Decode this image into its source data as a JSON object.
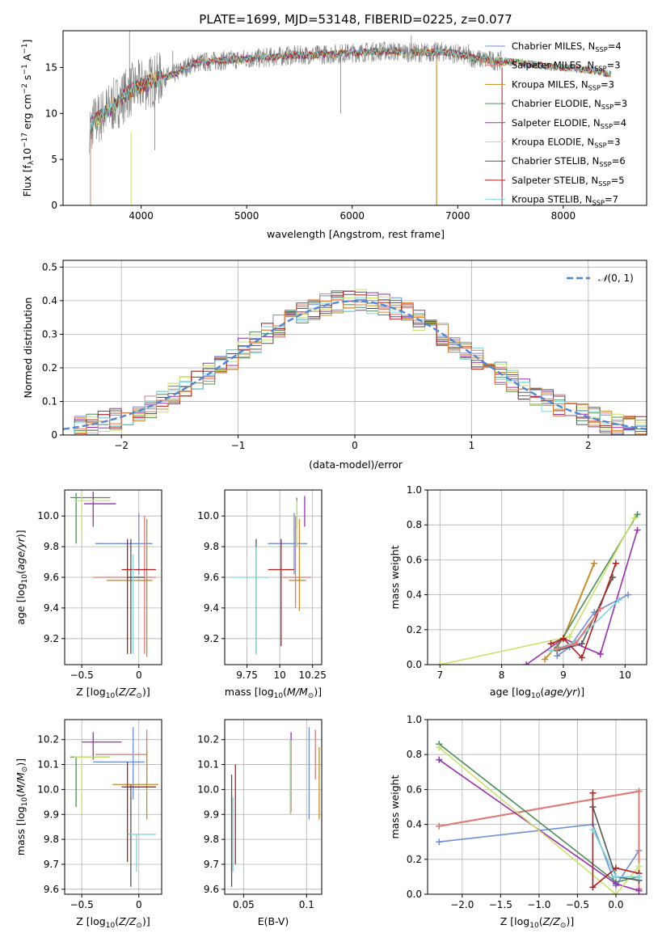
{
  "figure": {
    "title": "PLATE=1699, MJD=53148, FIBERID=0225, z=0.077"
  },
  "colors": {
    "Chabrier MILES": "#6d8fd9",
    "Salpeter MILES": "#e07a7a",
    "Kroupa MILES": "#c88d24",
    "Chabrier ELODIE": "#4c8f5a",
    "Salpeter ELODIE": "#9a2fae",
    "Kroupa ELODIE": "#c9e36a",
    "Chabrier STELIB": "#555555",
    "Salpeter STELIB": "#b71c1c",
    "Kroupa STELIB": "#7fd6d6",
    "data": "#808080",
    "gaussian": "#4f86d6",
    "orange": "#e07b39"
  },
  "chart_data": [
    {
      "id": "spectrum",
      "type": "line",
      "xlabel": "wavelength [Angstrom, rest frame]",
      "ylabel": "Flux [f_λ 10^-17 erg cm^-2 s^-1 A^-1]",
      "xlim": [
        3260,
        8790
      ],
      "ylim": [
        0,
        19
      ],
      "xticks": [
        4000,
        5000,
        6000,
        7000,
        8000
      ],
      "yticks": [
        0,
        5,
        10,
        15
      ],
      "grid": false,
      "legend_position": "right",
      "continuum": {
        "x": [
          3500,
          3700,
          3900,
          4100,
          4300,
          4500,
          4800,
          5100,
          5400,
          5700,
          6000,
          6300,
          6600,
          6900,
          7200,
          7400,
          7600,
          7800,
          8000,
          8200,
          8450
        ],
        "y": [
          8.5,
          10.5,
          12.5,
          13.5,
          14.2,
          15.5,
          15.8,
          16.0,
          16.3,
          16.4,
          16.6,
          16.8,
          16.6,
          16.7,
          15.9,
          15.7,
          15.5,
          15.2,
          15.0,
          14.8,
          14.3
        ]
      },
      "legend": [
        {
          "label": "Chabrier MILES, N",
          "n": "=4"
        },
        {
          "label": "Salpeter MILES, N",
          "n": "=3"
        },
        {
          "label": "Kroupa MILES, N",
          "n": "=3"
        },
        {
          "label": "Chabrier ELODIE, N",
          "n": "=3"
        },
        {
          "label": "Salpeter ELODIE, N",
          "n": "=4"
        },
        {
          "label": "Kroupa ELODIE, N",
          "n": "=3"
        },
        {
          "label": "Chabrier STELIB, N",
          "n": "=6"
        },
        {
          "label": "Salpeter STELIB, N",
          "n": "=5"
        },
        {
          "label": "Kroupa STELIB, N",
          "n": "=7"
        }
      ],
      "legend_sub": "SSP"
    },
    {
      "id": "residuals",
      "type": "histogram",
      "xlabel": "(data-model)/error",
      "ylabel": "Normed distribution",
      "xlim": [
        -2.5,
        2.5
      ],
      "ylim": [
        0,
        0.52
      ],
      "xticks": [
        -2,
        -1,
        0,
        1,
        2
      ],
      "yticks": [
        0.0,
        0.1,
        0.2,
        0.3,
        0.4,
        0.5
      ],
      "grid": true,
      "legend": "N(0,1)",
      "legend_position": "top-right"
    },
    {
      "id": "age-vs-Z",
      "type": "errorbar",
      "xlabel": "Z [log10(Z/Z⊙)]",
      "ylabel": "age [log10(age/yr)]",
      "xlim": [
        -0.65,
        0.2
      ],
      "ylim": [
        9.03,
        10.17
      ],
      "xticks": [
        -0.5,
        0.0
      ],
      "yticks": [
        9.2,
        9.4,
        9.6,
        9.8,
        10.0
      ],
      "grid": true,
      "points": [
        {
          "s": "Chabrier MILES",
          "x": 0.0,
          "xe": [
            0.38,
            0.12
          ],
          "y": 9.82,
          "ye": [
            0.2,
            0.2
          ]
        },
        {
          "s": "Salpeter MILES",
          "x": 0.05,
          "xe": [
            0.45,
            0.1
          ],
          "y": 9.6,
          "ye": [
            0.5,
            0.4
          ]
        },
        {
          "s": "Kroupa MILES",
          "x": 0.07,
          "xe": [
            0.35,
            0.05
          ],
          "y": 9.58,
          "ye": [
            0.5,
            0.4
          ]
        },
        {
          "s": "Chabrier ELODIE",
          "x": -0.55,
          "xe": [
            0.05,
            0.3
          ],
          "y": 10.12,
          "ye": [
            0.3,
            0.03
          ]
        },
        {
          "s": "Salpeter ELODIE",
          "x": -0.4,
          "xe": [
            0.08,
            0.2
          ],
          "y": 10.08,
          "ye": [
            0.15,
            0.08
          ]
        },
        {
          "s": "Kroupa ELODIE",
          "x": -0.5,
          "xe": [
            0.07,
            0.25
          ],
          "y": 10.1,
          "ye": [
            0.25,
            0.05
          ]
        },
        {
          "s": "Chabrier STELIB",
          "x": -0.07,
          "xe": [
            0.03,
            0.12
          ],
          "y": 9.6,
          "ye": [
            0.5,
            0.25
          ]
        },
        {
          "s": "Salpeter STELIB",
          "x": -0.1,
          "xe": [
            0.05,
            0.25
          ],
          "y": 9.65,
          "ye": [
            0.55,
            0.2
          ]
        },
        {
          "s": "Kroupa STELIB",
          "x": -0.05,
          "xe": [
            0.0,
            0.0
          ],
          "y": 9.6,
          "ye": [
            0.5,
            0.15
          ]
        }
      ]
    },
    {
      "id": "age-vs-mass",
      "type": "errorbar",
      "xlabel": "mass [log10(M/M⊙)]",
      "ylabel": "",
      "xlim": [
        9.58,
        10.32
      ],
      "ylim": [
        9.03,
        10.17
      ],
      "xticks": [
        9.75,
        10.0,
        10.25
      ],
      "yticks": [
        9.2,
        9.4,
        9.6,
        9.8,
        10.0
      ],
      "grid": true,
      "points": [
        {
          "s": "Chabrier MILES",
          "x": 10.11,
          "xe": [
            0.2,
            0.1
          ],
          "y": 9.82,
          "ye": [
            0.2,
            0.2
          ]
        },
        {
          "s": "Salpeter MILES",
          "x": 10.12,
          "xe": [
            0.1,
            0.12
          ],
          "y": 9.6,
          "ye": [
            0.2,
            0.4
          ]
        },
        {
          "s": "Kroupa MILES",
          "x": 10.15,
          "xe": [
            0.08,
            0.05
          ],
          "y": 9.58,
          "ye": [
            0.2,
            0.4
          ]
        },
        {
          "s": "Chabrier ELODIE",
          "x": 10.13,
          "xe": [
            0.0,
            0.0
          ],
          "y": 10.12,
          "ye": [
            0.2,
            0.0
          ]
        },
        {
          "s": "Salpeter ELODIE",
          "x": 10.19,
          "xe": [
            0.0,
            0.0
          ],
          "y": 10.08,
          "ye": [
            0.15,
            0.05
          ]
        },
        {
          "s": "Kroupa ELODIE",
          "x": 10.13,
          "xe": [
            0.0,
            0.0
          ],
          "y": 10.1,
          "ye": [
            0.3,
            0.0
          ]
        },
        {
          "s": "Chabrier STELIB",
          "x": 9.82,
          "xe": [
            0.0,
            0.0
          ],
          "y": 9.6,
          "ye": [
            0.5,
            0.25
          ]
        },
        {
          "s": "Salpeter STELIB",
          "x": 10.01,
          "xe": [
            0.1,
            0.1
          ],
          "y": 9.65,
          "ye": [
            0.5,
            0.2
          ]
        },
        {
          "s": "Kroupa STELIB",
          "x": 9.82,
          "xe": [
            0.2,
            0.1
          ],
          "y": 9.6,
          "ye": [
            0.5,
            0.2
          ]
        }
      ]
    },
    {
      "id": "weight-vs-age",
      "type": "line",
      "xlabel": "age [log10(age/yr)]",
      "ylabel": "mass weight",
      "xlim": [
        6.8,
        10.35
      ],
      "ylim": [
        0,
        1.0
      ],
      "xticks": [
        7,
        8,
        9,
        10
      ],
      "yticks": [
        0.0,
        0.2,
        0.4,
        0.6,
        0.8,
        1.0
      ],
      "grid": true,
      "series": [
        {
          "s": "Chabrier MILES",
          "x": [
            8.9,
            9.1,
            9.5,
            10.05
          ],
          "y": [
            0.05,
            0.1,
            0.3,
            0.4
          ]
        },
        {
          "s": "Kroupa MILES",
          "x": [
            8.7,
            9.0,
            9.5
          ],
          "y": [
            0.03,
            0.15,
            0.58
          ]
        },
        {
          "s": "Chabrier ELODIE",
          "x": [
            8.9,
            10.2
          ],
          "y": [
            0.1,
            0.86
          ]
        },
        {
          "s": "Salpeter ELODIE",
          "x": [
            8.4,
            9.0,
            9.6,
            10.2
          ],
          "y": [
            0.0,
            0.15,
            0.06,
            0.77
          ]
        },
        {
          "s": "Kroupa ELODIE",
          "x": [
            7.0,
            9.1,
            10.15
          ],
          "y": [
            0.0,
            0.16,
            0.84
          ]
        },
        {
          "s": "Chabrier STELIB",
          "x": [
            8.9,
            9.3,
            9.8
          ],
          "y": [
            0.08,
            0.12,
            0.5
          ]
        },
        {
          "s": "Salpeter STELIB",
          "x": [
            8.8,
            9.0,
            9.3,
            9.85
          ],
          "y": [
            0.12,
            0.15,
            0.04,
            0.58
          ]
        },
        {
          "s": "Kroupa STELIB",
          "x": [
            8.8,
            9.2,
            9.9
          ],
          "y": [
            0.08,
            0.13,
            0.37
          ]
        },
        {
          "s": "Salpeter MILES",
          "x": [
            8.9,
            9.2,
            9.6
          ],
          "y": [
            0.09,
            0.12,
            0.32
          ]
        }
      ]
    },
    {
      "id": "mass-vs-Z",
      "type": "errorbar",
      "xlabel": "Z [log10(Z/Z⊙)]",
      "ylabel": "mass [log10(M/M⊙)]",
      "xlim": [
        -0.65,
        0.2
      ],
      "ylim": [
        9.58,
        10.28
      ],
      "xticks": [
        -0.5,
        0.0
      ],
      "yticks": [
        9.6,
        9.7,
        9.8,
        9.9,
        10.0,
        10.1,
        10.2
      ],
      "grid": true,
      "points": [
        {
          "s": "Chabrier MILES",
          "x": -0.05,
          "xe": [
            0.35,
            0.1
          ],
          "y": 10.11,
          "ye": [
            0.15,
            0.14
          ]
        },
        {
          "s": "Salpeter MILES",
          "x": 0.07,
          "xe": [
            0.45,
            0.0
          ],
          "y": 10.14,
          "ye": [
            0.12,
            0.1
          ]
        },
        {
          "s": "Kroupa MILES",
          "x": 0.07,
          "xe": [
            0.3,
            0.1
          ],
          "y": 10.02,
          "ye": [
            0.14,
            0.14
          ]
        },
        {
          "s": "Chabrier ELODIE",
          "x": -0.55,
          "xe": [
            0.05,
            0.3
          ],
          "y": 10.13,
          "ye": [
            0.2,
            0.0
          ]
        },
        {
          "s": "Salpeter ELODIE",
          "x": -0.4,
          "xe": [
            0.1,
            0.25
          ],
          "y": 10.19,
          "ye": [
            0.07,
            0.04
          ]
        },
        {
          "s": "Kroupa ELODIE",
          "x": -0.5,
          "xe": [
            0.07,
            0.25
          ],
          "y": 10.13,
          "ye": [
            0.23,
            0.0
          ]
        },
        {
          "s": "Chabrier STELIB",
          "x": -0.07,
          "xe": [
            0.03,
            0.0
          ],
          "y": 9.82,
          "ye": [
            0.21,
            0.2
          ]
        },
        {
          "s": "Salpeter STELIB",
          "x": -0.1,
          "xe": [
            0.05,
            0.25
          ],
          "y": 10.01,
          "ye": [
            0.3,
            0.1
          ]
        },
        {
          "s": "Kroupa STELIB",
          "x": -0.02,
          "xe": [
            0.08,
            0.17
          ],
          "y": 9.82,
          "ye": [
            0.15,
            0.0
          ]
        }
      ]
    },
    {
      "id": "mass-vs-ebv",
      "type": "errorbar",
      "xlabel": "E(B-V)",
      "ylabel": "",
      "xlim": [
        0.035,
        0.112
      ],
      "ylim": [
        9.58,
        10.28
      ],
      "xticks": [
        0.05,
        0.1
      ],
      "yticks": [
        9.6,
        9.7,
        9.8,
        9.9,
        10.0,
        10.1,
        10.2
      ],
      "grid": true,
      "points": [
        {
          "s": "Chabrier MILES",
          "x": 0.102,
          "y": 10.07,
          "ye": [
            0.19,
            0.18
          ]
        },
        {
          "s": "Salpeter MILES",
          "x": 0.107,
          "y": 10.14,
          "ye": [
            0.1,
            0.1
          ]
        },
        {
          "s": "Kroupa MILES",
          "x": 0.11,
          "y": 10.02,
          "ye": [
            0.14,
            0.15
          ]
        },
        {
          "s": "Chabrier ELODIE",
          "x": 0.0872,
          "y": 10.1,
          "ye": [
            0.2,
            0.1
          ]
        },
        {
          "s": "Salpeter ELODIE",
          "x": 0.0877,
          "y": 10.13,
          "ye": [
            0.22,
            0.1
          ]
        },
        {
          "s": "Kroupa ELODIE",
          "x": 0.0875,
          "y": 10.1,
          "ye": [
            0.2,
            0.1
          ]
        },
        {
          "s": "Chabrier STELIB",
          "x": 0.0405,
          "y": 9.82,
          "ye": [
            0.21,
            0.24
          ]
        },
        {
          "s": "Salpeter STELIB",
          "x": 0.0435,
          "y": 9.9,
          "ye": [
            0.2,
            0.2
          ]
        },
        {
          "s": "Kroupa STELIB",
          "x": 0.0415,
          "y": 9.82,
          "ye": [
            0.15,
            0.15
          ]
        }
      ]
    },
    {
      "id": "weight-vs-Z",
      "type": "line",
      "xlabel": "Z [log10(Z/Z⊙)]",
      "ylabel": "mass weight",
      "xlim": [
        -2.45,
        0.4
      ],
      "ylim": [
        0,
        1.0
      ],
      "xticks": [
        -2.0,
        -1.5,
        -1.0,
        -0.5,
        0.0
      ],
      "yticks": [
        0.0,
        0.2,
        0.4,
        0.6,
        0.8,
        1.0
      ],
      "grid": true,
      "series": [
        {
          "s": "Chabrier MILES",
          "x": [
            -2.3,
            -0.3,
            0.0,
            0.3
          ],
          "y": [
            0.3,
            0.4,
            0.05,
            0.25
          ]
        },
        {
          "s": "Kroupa MILES",
          "x": [
            -2.3,
            0.3,
            0.3
          ],
          "y": [
            0.39,
            0.59,
            0.03
          ]
        },
        {
          "s": "Salpeter MILES",
          "x": [
            -2.3,
            0.3,
            0.3
          ],
          "y": [
            0.39,
            0.59,
            0.03
          ]
        },
        {
          "s": "Chabrier ELODIE",
          "x": [
            -2.3,
            0.0,
            0.3
          ],
          "y": [
            0.86,
            0.07,
            0.1
          ]
        },
        {
          "s": "Salpeter ELODIE",
          "x": [
            -2.3,
            0.0,
            0.3
          ],
          "y": [
            0.77,
            0.06,
            0.02
          ]
        },
        {
          "s": "Kroupa ELODIE",
          "x": [
            -2.3,
            0.0,
            0.3
          ],
          "y": [
            0.84,
            0.0,
            0.16
          ]
        },
        {
          "s": "Chabrier STELIB",
          "x": [
            -0.3,
            0.0,
            0.3
          ],
          "y": [
            0.5,
            0.1,
            0.08
          ]
        },
        {
          "s": "Salpeter STELIB",
          "x": [
            -0.3,
            -0.3,
            0.0,
            0.3
          ],
          "y": [
            0.58,
            0.04,
            0.15,
            0.12
          ]
        },
        {
          "s": "Kroupa STELIB",
          "x": [
            -0.3,
            0.0,
            0.3
          ],
          "y": [
            0.37,
            0.1,
            0.1
          ]
        }
      ]
    }
  ]
}
